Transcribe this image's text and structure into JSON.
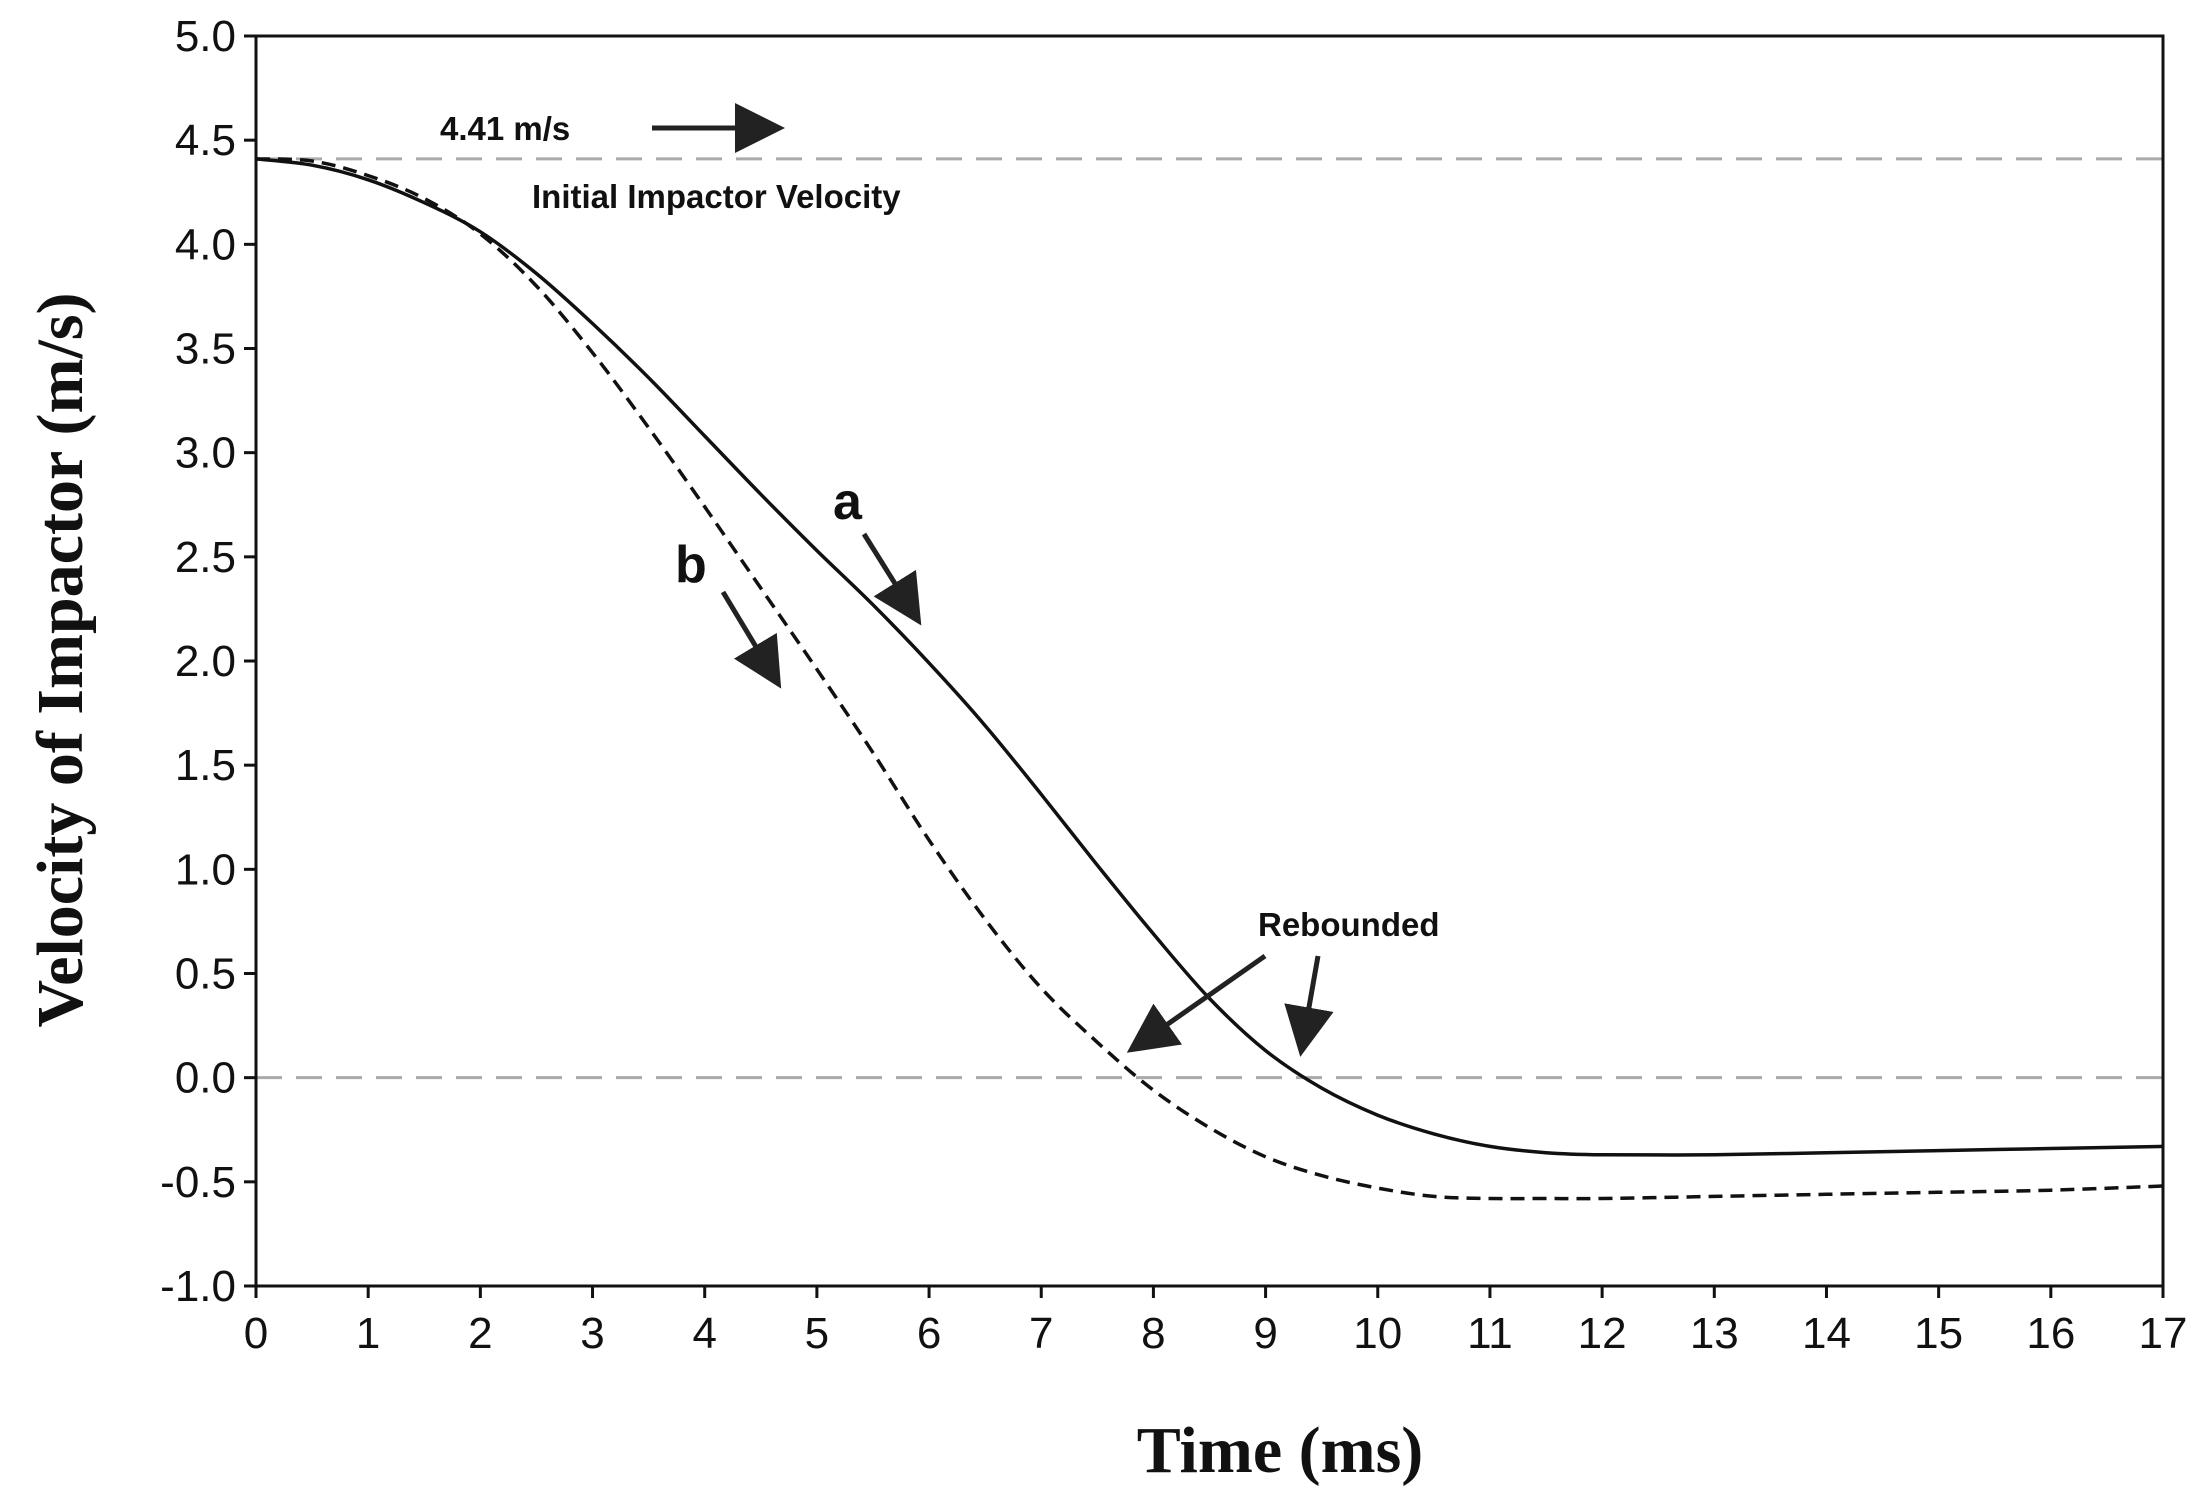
{
  "chart_data": {
    "type": "line",
    "title": "",
    "xlabel": "Time (ms)",
    "ylabel": "Velocity of Impactor (m/s)",
    "xlim": [
      0,
      17
    ],
    "ylim": [
      -1.0,
      5.0
    ],
    "grid": false,
    "x_ticks": [
      0,
      1,
      2,
      3,
      4,
      5,
      6,
      7,
      8,
      9,
      10,
      11,
      12,
      13,
      14,
      15,
      16,
      17
    ],
    "x_tick_labels": [
      "0",
      "1",
      "2",
      "3",
      "4",
      "5",
      "6",
      "7",
      "8",
      "9",
      "10",
      "11",
      "12",
      "13",
      "14",
      "15",
      "16",
      "17"
    ],
    "y_ticks": [
      -1.0,
      -0.5,
      0.0,
      0.5,
      1.0,
      1.5,
      2.0,
      2.5,
      3.0,
      3.5,
      4.0,
      4.5,
      5.0
    ],
    "y_tick_labels": [
      "-1.0",
      "-0.5",
      "0.0",
      "0.5",
      "1.0",
      "1.5",
      "2.0",
      "2.5",
      "3.0",
      "3.5",
      "4.0",
      "4.5",
      "5.0"
    ],
    "reference_lines": [
      {
        "name": "initial-velocity",
        "y": 4.41
      },
      {
        "name": "zero-velocity",
        "y": 0.0
      }
    ],
    "series": [
      {
        "name": "a",
        "style": "solid",
        "x": [
          0,
          0.5,
          1,
          1.5,
          2,
          2.5,
          3,
          3.5,
          4,
          4.5,
          5,
          5.5,
          6,
          6.5,
          7,
          7.5,
          8,
          8.5,
          9,
          9.5,
          10,
          10.5,
          11,
          11.5,
          12,
          13,
          14,
          15,
          16,
          17
        ],
        "y": [
          4.41,
          4.38,
          4.31,
          4.2,
          4.06,
          3.86,
          3.62,
          3.36,
          3.08,
          2.8,
          2.53,
          2.27,
          1.99,
          1.69,
          1.36,
          1.02,
          0.69,
          0.38,
          0.13,
          -0.05,
          -0.18,
          -0.27,
          -0.33,
          -0.36,
          -0.37,
          -0.37,
          -0.36,
          -0.35,
          -0.34,
          -0.33
        ]
      },
      {
        "name": "b",
        "style": "dashed",
        "x": [
          0,
          0.5,
          1,
          1.5,
          2,
          2.5,
          3,
          3.5,
          4,
          4.5,
          5,
          5.5,
          6,
          6.5,
          7,
          7.5,
          8,
          8.5,
          9,
          9.5,
          10,
          10.5,
          11,
          11.5,
          12,
          13,
          14,
          15,
          16,
          17
        ],
        "y": [
          4.41,
          4.4,
          4.33,
          4.22,
          4.05,
          3.8,
          3.48,
          3.12,
          2.74,
          2.35,
          1.96,
          1.56,
          1.14,
          0.76,
          0.43,
          0.17,
          -0.06,
          -0.24,
          -0.38,
          -0.47,
          -0.53,
          -0.57,
          -0.58,
          -0.58,
          -0.58,
          -0.57,
          -0.56,
          -0.55,
          -0.54,
          -0.52
        ]
      }
    ],
    "annotations": {
      "initial_value": "4.41 m/s",
      "initial_label": "Initial Impactor Velocity",
      "label_a": "a",
      "label_b": "b",
      "rebounded": "Rebounded"
    }
  }
}
